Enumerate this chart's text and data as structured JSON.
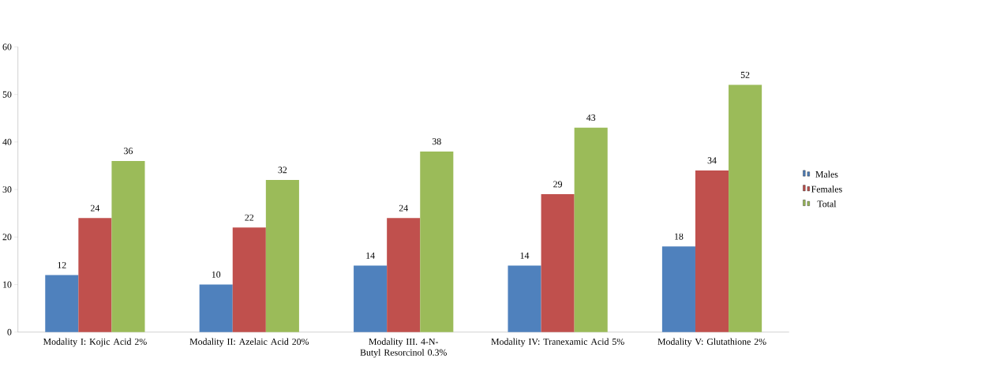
{
  "chart_data": {
    "type": "bar",
    "categories": [
      "Modality I: Kojic Acid 2%",
      "Modality II: Azelaic Acid 20%",
      "Modality III. 4-N-Butyl Resorcinol 0.3%",
      "Modality IV: Tranexamic Acid 5%",
      "Modality V: Glutathione 2%"
    ],
    "series": [
      {
        "name": "Males",
        "color": "#4f81bd",
        "values": [
          12,
          10,
          14,
          14,
          18
        ]
      },
      {
        "name": "Females",
        "color": "#c0504d",
        "values": [
          24,
          22,
          24,
          29,
          34
        ]
      },
      {
        "name": "Total",
        "color": "#9bbb59",
        "values": [
          36,
          32,
          38,
          43,
          52
        ]
      }
    ],
    "ylim": [
      0,
      60
    ],
    "yticks": [
      0,
      10,
      20,
      30,
      40,
      50,
      60
    ],
    "data_labels": true,
    "legend": "right",
    "grid": false
  }
}
